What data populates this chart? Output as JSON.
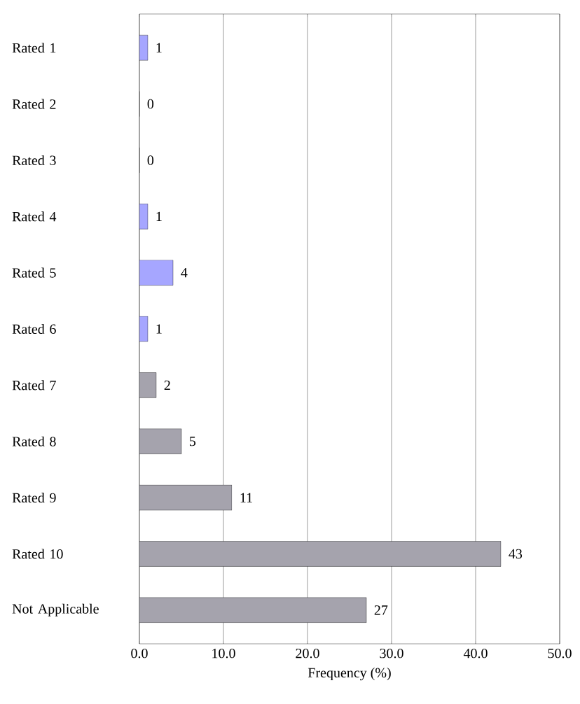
{
  "chart_data": {
    "type": "bar",
    "orientation": "horizontal",
    "xlabel": "Frequency (%)",
    "categories": [
      "Rated 1",
      "Rated 2",
      "Rated 3",
      "Rated 4",
      "Rated 5",
      "Rated 6",
      "Rated 7",
      "Rated 8",
      "Rated 9",
      "Rated 10",
      "Not Applicable"
    ],
    "values": [
      1,
      0,
      0,
      1,
      4,
      1,
      2,
      5,
      11,
      43,
      27
    ],
    "colors": [
      "#a6a6ff",
      "#a6a6ff",
      "#a6a6ff",
      "#a6a6ff",
      "#a6a6ff",
      "#a6a6ff",
      "#a5a3ad",
      "#a5a3ad",
      "#a5a3ad",
      "#a5a3ad",
      "#a5a3ad"
    ],
    "xlim": [
      0,
      50
    ],
    "xticks": [
      {
        "value": 0,
        "label": "0.0"
      },
      {
        "value": 10,
        "label": "10.0"
      },
      {
        "value": 20,
        "label": "20.0"
      },
      {
        "value": 30,
        "label": "30.0"
      },
      {
        "value": 40,
        "label": "40.0"
      },
      {
        "value": 50,
        "label": "50.0"
      }
    ],
    "grid": "x",
    "data_labels": true
  }
}
